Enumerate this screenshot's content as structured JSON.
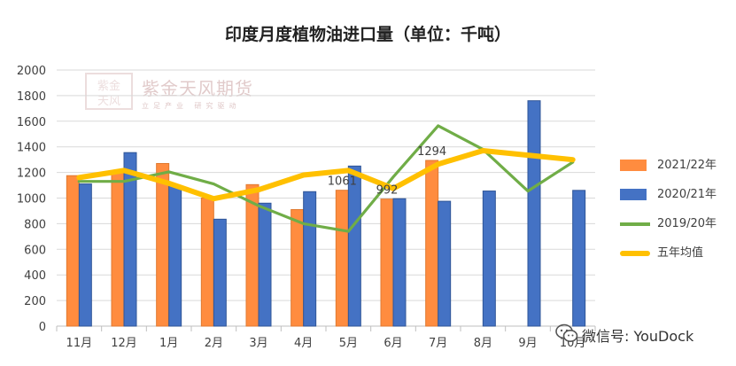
{
  "chart_data": {
    "type": "bar",
    "title": "印度月度植物油进口量（单位：千吨）",
    "categories": [
      "11月",
      "12月",
      "1月",
      "2月",
      "3月",
      "4月",
      "5月",
      "6月",
      "7月",
      "8月",
      "9月",
      "10月"
    ],
    "ylim": [
      0,
      2000
    ],
    "yticks": [
      "0",
      "200",
      "400",
      "600",
      "800",
      "1000",
      "1200",
      "1400",
      "1600",
      "1800",
      "2000"
    ],
    "grid": true,
    "legend_position": "right",
    "series": [
      {
        "name": "2021/22年",
        "kind": "bar",
        "color": "#ff8c3f",
        "values": [
          1175,
          1210,
          1270,
          1000,
          1105,
          910,
          1061,
          992,
          1294,
          null,
          null,
          null
        ]
      },
      {
        "name": "2020/21年",
        "kind": "bar",
        "color": "#4472c4",
        "values": [
          1110,
          1355,
          1095,
          835,
          960,
          1050,
          1250,
          995,
          975,
          1055,
          1760,
          1060
        ]
      },
      {
        "name": "2019/20年",
        "kind": "line",
        "color": "#70ad47",
        "values": [
          1130,
          1130,
          1205,
          1110,
          940,
          800,
          740,
          1165,
          1565,
          1380,
          1055,
          1280
        ]
      },
      {
        "name": "五年均值",
        "kind": "line",
        "color": "#ffc000",
        "values": [
          1160,
          1215,
          1115,
          995,
          1065,
          1180,
          1215,
          1075,
          1265,
          1370,
          1335,
          1300
        ]
      }
    ],
    "data_labels": [
      {
        "series": 0,
        "index": 6,
        "text": "1061"
      },
      {
        "series": 0,
        "index": 7,
        "text": "992"
      },
      {
        "series": 0,
        "index": 8,
        "text": "1294"
      }
    ]
  },
  "watermark": {
    "logo_text": "紫金天风",
    "text": "紫金天风期货",
    "subtext": "立足产业 研究驱动",
    "color": "#c9a0a0"
  },
  "wechat": {
    "label": "微信号: YouDock",
    "icon": "wechat-icon"
  }
}
